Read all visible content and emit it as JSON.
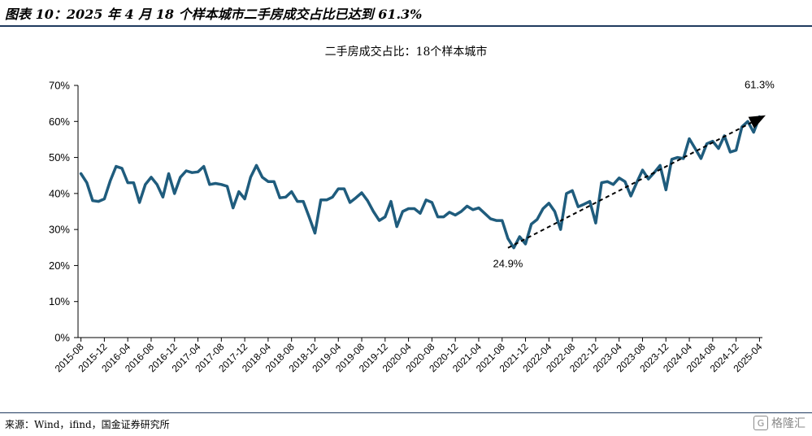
{
  "figure_title": "图表 10：2025 年 4 月 18 个样本城市二手房成交占比已达到 61.3%",
  "source": "来源：Wind，ifind，国金证券研究所",
  "watermark": {
    "text": "格隆汇",
    "icon": "G"
  },
  "colors": {
    "line": "#1f5c7d",
    "arrow": "#000000",
    "axis": "#000000",
    "rule": "#1f3a5f"
  },
  "chart_data": {
    "type": "line",
    "title": "二手房成交占比：18个样本城市",
    "ylabel": "",
    "xlabel": "",
    "ylim": [
      0,
      70
    ],
    "yticks": [
      "0%",
      "10%",
      "20%",
      "30%",
      "40%",
      "50%",
      "60%",
      "70%"
    ],
    "grid": false,
    "x_start": "2015-08",
    "xtick_labels": [
      "2015-08",
      "2015-12",
      "2016-04",
      "2016-08",
      "2016-12",
      "2017-04",
      "2017-08",
      "2017-12",
      "2018-04",
      "2018-08",
      "2018-12",
      "2019-04",
      "2019-08",
      "2019-12",
      "2020-04",
      "2020-08",
      "2020-12",
      "2021-04",
      "2021-08",
      "2021-12",
      "2022-04",
      "2022-08",
      "2022-12",
      "2023-04",
      "2023-08",
      "2023-12",
      "2024-04",
      "2024-08",
      "2024-12",
      "2025-04"
    ],
    "series": [
      {
        "values": [
          45.5,
          43.0,
          38.0,
          37.8,
          38.5,
          43.5,
          47.5,
          47.0,
          43.0,
          43.0,
          37.5,
          42.5,
          44.5,
          42.5,
          39.0,
          45.5,
          40.0,
          44.5,
          46.3,
          45.8,
          46.0,
          47.5,
          42.5,
          42.8,
          42.5,
          42.0,
          36.0,
          40.5,
          38.5,
          44.5,
          47.8,
          44.5,
          43.3,
          43.3,
          38.8,
          39.0,
          40.5,
          37.8,
          37.8,
          33.5,
          29.0,
          38.2,
          38.2,
          39.0,
          41.3,
          41.3,
          37.5,
          38.8,
          40.2,
          38.0,
          35.0,
          32.5,
          33.5,
          37.8,
          30.8,
          35.0,
          35.8,
          35.8,
          34.5,
          38.2,
          37.5,
          33.5,
          33.5,
          34.8,
          34.0,
          35.0,
          36.5,
          35.5,
          36.0,
          34.5,
          33.0,
          32.5,
          32.5,
          27.5,
          24.9,
          28.0,
          26.0,
          31.5,
          32.8,
          35.8,
          37.3,
          35.0,
          30.0,
          40.0,
          40.8,
          36.3,
          37.0,
          37.8,
          31.8,
          43.0,
          43.3,
          42.5,
          44.3,
          43.3,
          39.3,
          43.0,
          46.5,
          44.0,
          45.8,
          47.8,
          41.0,
          49.5,
          50.0,
          49.7,
          55.2,
          52.5,
          49.7,
          53.8,
          54.5,
          52.5,
          56.0,
          51.5,
          52.0,
          58.5,
          60.0,
          57.0,
          61.3
        ]
      }
    ],
    "annotations": [
      {
        "text": "24.9%",
        "x": "2021-09",
        "y": 24.9,
        "position": "below"
      },
      {
        "text": "61.3%",
        "x": "2025-04",
        "y": 61.3,
        "position": "above"
      }
    ],
    "trend_arrow": {
      "from": {
        "x": "2021-09",
        "y": 24.9
      },
      "to": {
        "x": "2025-04",
        "y": 61.3
      },
      "style": "dashed"
    }
  }
}
